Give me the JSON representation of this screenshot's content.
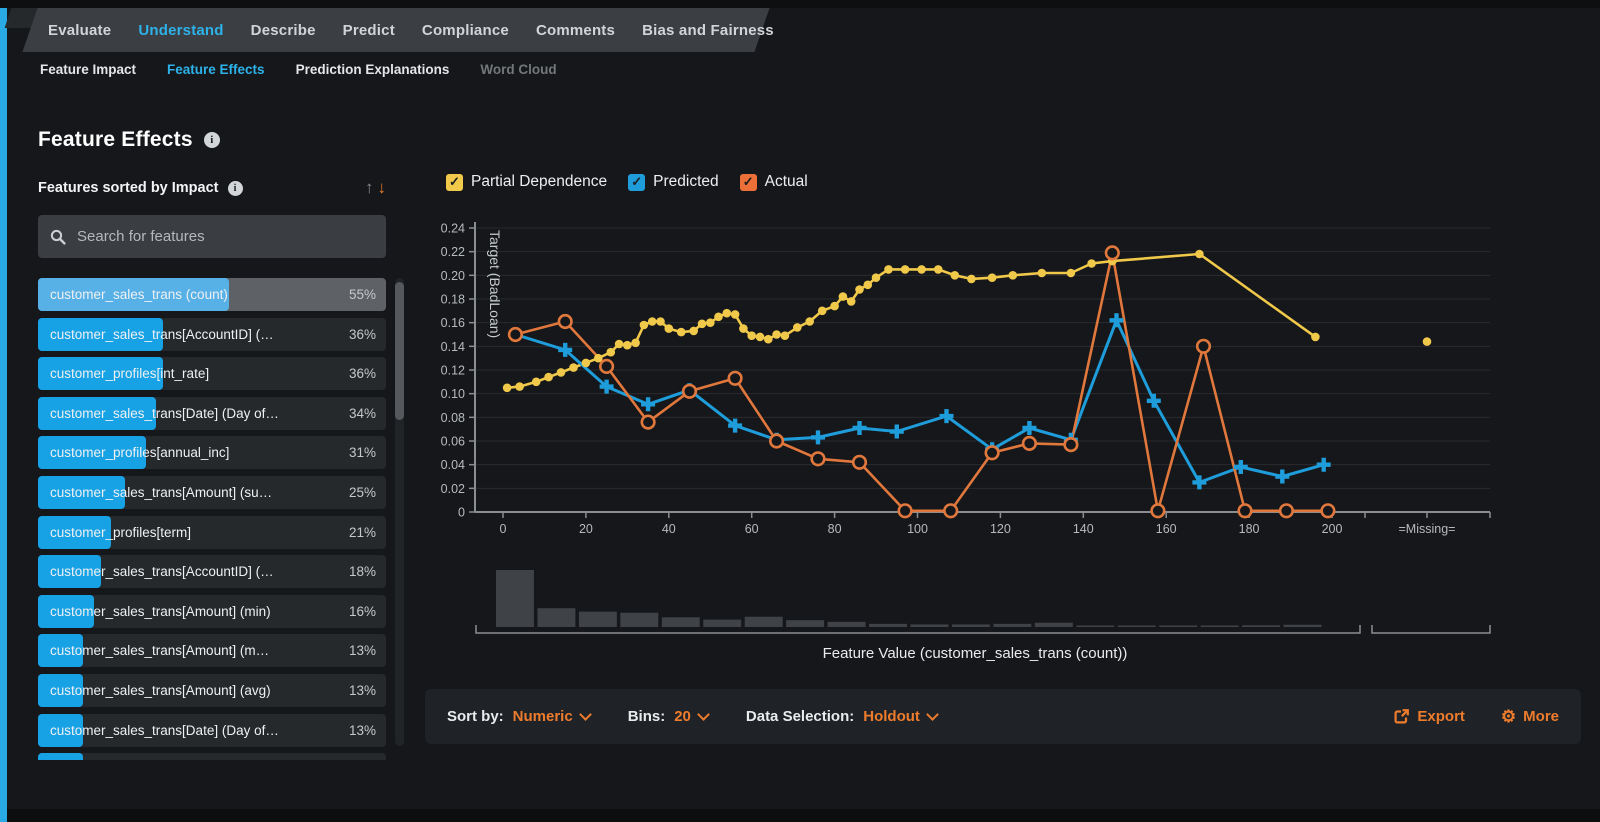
{
  "nav": {
    "tabs": [
      {
        "label": "Evaluate",
        "active": false
      },
      {
        "label": "Understand",
        "active": true
      },
      {
        "label": "Describe",
        "active": false
      },
      {
        "label": "Predict",
        "active": false
      },
      {
        "label": "Compliance",
        "active": false
      },
      {
        "label": "Comments",
        "active": false
      },
      {
        "label": "Bias and Fairness",
        "active": false
      }
    ]
  },
  "subnav": {
    "tabs": [
      {
        "label": "Feature Impact",
        "active": false,
        "disabled": false
      },
      {
        "label": "Feature Effects",
        "active": true,
        "disabled": false
      },
      {
        "label": "Prediction Explanations",
        "active": false,
        "disabled": false
      },
      {
        "label": "Word Cloud",
        "active": false,
        "disabled": true
      }
    ]
  },
  "page": {
    "title": "Feature Effects"
  },
  "sidebar": {
    "sort_label": "Features sorted by Impact",
    "search_placeholder": "Search for features",
    "features": [
      {
        "label": "customer_sales_trans (count)",
        "impact": "55%",
        "impact_pct": 55,
        "selected": true
      },
      {
        "label": "customer_sales_trans[AccountID] (…",
        "impact": "36%",
        "impact_pct": 36,
        "selected": false
      },
      {
        "label": "customer_profiles[int_rate]",
        "impact": "36%",
        "impact_pct": 36,
        "selected": false
      },
      {
        "label": "customer_sales_trans[Date] (Day of…",
        "impact": "34%",
        "impact_pct": 34,
        "selected": false
      },
      {
        "label": "customer_profiles[annual_inc]",
        "impact": "31%",
        "impact_pct": 31,
        "selected": false
      },
      {
        "label": "customer_sales_trans[Amount] (su…",
        "impact": "25%",
        "impact_pct": 25,
        "selected": false
      },
      {
        "label": "customer_profiles[term]",
        "impact": "21%",
        "impact_pct": 21,
        "selected": false
      },
      {
        "label": "customer_sales_trans[AccountID] (…",
        "impact": "18%",
        "impact_pct": 18,
        "selected": false
      },
      {
        "label": "customer_sales_trans[Amount] (min)",
        "impact": "16%",
        "impact_pct": 16,
        "selected": false
      },
      {
        "label": "customer_sales_trans[Amount] (m…",
        "impact": "13%",
        "impact_pct": 13,
        "selected": false
      },
      {
        "label": "customer_sales_trans[Amount] (avg)",
        "impact": "13%",
        "impact_pct": 13,
        "selected": false
      },
      {
        "label": "customer_sales_trans[Date] (Day of…",
        "impact": "13%",
        "impact_pct": 13,
        "selected": false
      },
      {
        "label": "",
        "impact": "",
        "impact_pct": 13,
        "selected": false
      }
    ]
  },
  "legend": {
    "items": [
      {
        "label": "Partial Dependence",
        "color": "#f0c84a",
        "checked": true
      },
      {
        "label": "Predicted",
        "color": "#1f9ddb",
        "checked": true
      },
      {
        "label": "Actual",
        "color": "#ec7038",
        "checked": true
      }
    ]
  },
  "chart_data": {
    "type": "line",
    "ylabel": "Target (BadLoan)",
    "xlabel": "Feature Value (customer_sales_trans (count))",
    "ylim": [
      0,
      0.24
    ],
    "ytick_step": 0.02,
    "xticks": [
      0,
      20,
      40,
      60,
      80,
      100,
      120,
      140,
      160,
      180,
      200
    ],
    "missing_label": "=Missing=",
    "grid": true,
    "legend_position": "top",
    "series": [
      {
        "name": "Partial Dependence",
        "color": "#f0c84a",
        "marker": "dot",
        "x": [
          1,
          4,
          8,
          11,
          14,
          17,
          20,
          23,
          26,
          28,
          30,
          32,
          34,
          36,
          38,
          40,
          43,
          46,
          48,
          50,
          52,
          54,
          56,
          58,
          60,
          62,
          64,
          66,
          68,
          71,
          74,
          77,
          80,
          82,
          84,
          86,
          88,
          90,
          93,
          97,
          101,
          105,
          109,
          113,
          118,
          123,
          130,
          137,
          142,
          147,
          168,
          196
        ],
        "y": [
          0.105,
          0.106,
          0.11,
          0.114,
          0.118,
          0.122,
          0.126,
          0.13,
          0.135,
          0.142,
          0.141,
          0.143,
          0.158,
          0.161,
          0.161,
          0.155,
          0.152,
          0.153,
          0.159,
          0.16,
          0.165,
          0.168,
          0.167,
          0.155,
          0.149,
          0.148,
          0.146,
          0.15,
          0.149,
          0.156,
          0.161,
          0.17,
          0.174,
          0.182,
          0.178,
          0.188,
          0.192,
          0.198,
          0.205,
          0.205,
          0.205,
          0.205,
          0.2,
          0.197,
          0.198,
          0.2,
          0.202,
          0.202,
          0.21,
          0.212,
          0.218,
          0.148
        ],
        "missing_y": 0.144
      },
      {
        "name": "Predicted",
        "color": "#1f9ddb",
        "marker": "plus",
        "x": [
          3,
          15,
          25,
          35,
          45,
          56,
          66,
          76,
          86,
          95,
          107,
          118,
          127,
          137,
          148,
          157,
          168,
          178,
          188,
          198
        ],
        "y": [
          0.15,
          0.137,
          0.106,
          0.091,
          0.103,
          0.073,
          0.061,
          0.063,
          0.071,
          0.068,
          0.081,
          0.053,
          0.071,
          0.061,
          0.162,
          0.094,
          0.025,
          0.038,
          0.03,
          0.04
        ]
      },
      {
        "name": "Actual",
        "color": "#e0773c",
        "marker": "circle",
        "x": [
          3,
          15,
          25,
          35,
          45,
          56,
          66,
          76,
          86,
          97,
          108,
          118,
          127,
          137,
          147,
          158,
          169,
          179,
          189,
          199
        ],
        "y": [
          0.15,
          0.161,
          0.123,
          0.076,
          0.102,
          0.113,
          0.06,
          0.045,
          0.042,
          0.001,
          0.001,
          0.05,
          0.058,
          0.057,
          0.219,
          0.001,
          0.14,
          0.001,
          0.001,
          0.001
        ]
      }
    ],
    "histogram": {
      "bin_start": 0,
      "bin_width": 10,
      "values": [
        1.0,
        0.33,
        0.27,
        0.25,
        0.17,
        0.13,
        0.18,
        0.12,
        0.09,
        0.055,
        0.045,
        0.045,
        0.055,
        0.075,
        0.025,
        0.02,
        0.02,
        0.02,
        0.03,
        0.04
      ]
    }
  },
  "controls": {
    "sort_by_label": "Sort by:",
    "sort_by_value": "Numeric",
    "bins_label": "Bins:",
    "bins_value": "20",
    "data_selection_label": "Data Selection:",
    "data_selection_value": "Holdout",
    "export_label": "Export",
    "more_label": "More"
  }
}
